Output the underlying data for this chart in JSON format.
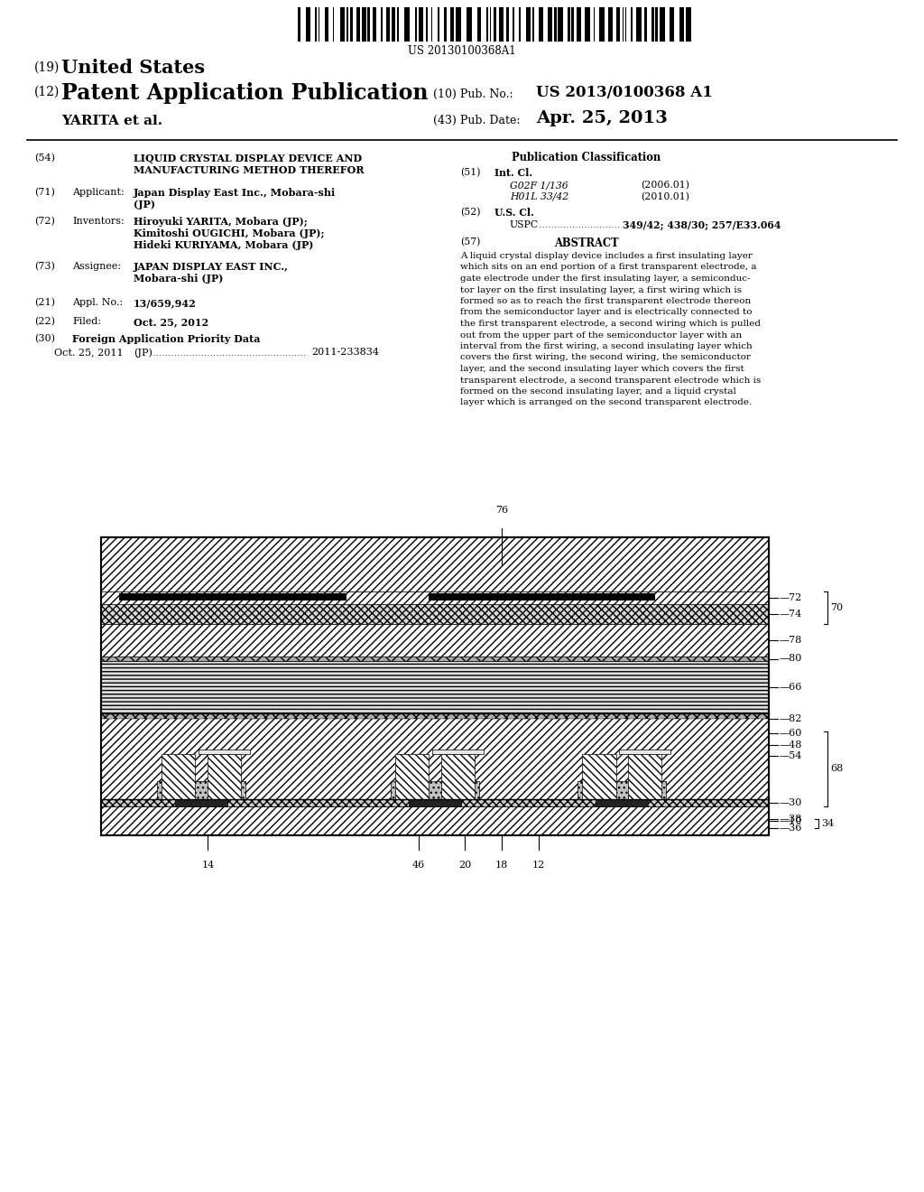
{
  "background_color": "#ffffff",
  "barcode_text": "US 20130100368A1",
  "title_19": "(19)",
  "title_19b": "United States",
  "title_12": "(12)",
  "title_12b": "Patent Application Publication",
  "pub_no_label": "(10) Pub. No.:",
  "pub_no_value": "US 2013/0100368 A1",
  "inventor_line_num": "YARITA et al.",
  "pub_date_label": "(43) Pub. Date:",
  "pub_date_value": "Apr. 25, 2013",
  "field54_label": "(54)",
  "field54_text1": "LIQUID CRYSTAL DISPLAY DEVICE AND",
  "field54_text2": "MANUFACTURING METHOD THEREFOR",
  "field71_label": "(71)",
  "field71_title": "Applicant:",
  "field71_text1": "Japan Display East Inc., Mobara-shi",
  "field71_text2": "(JP)",
  "field72_label": "(72)",
  "field72_title": "Inventors:",
  "field72_text1": "Hiroyuki YARITA, Mobara (JP);",
  "field72_text2": "Kimitoshi OUGICHI, Mobara (JP);",
  "field72_text3": "Hideki KURIYAMA, Mobara (JP)",
  "field73_label": "(73)",
  "field73_title": "Assignee:",
  "field73_text1": "JAPAN DISPLAY EAST INC.,",
  "field73_text2": "Mobara-shi (JP)",
  "field21_label": "(21)",
  "field21_title": "Appl. No.:",
  "field21_text": "13/659,942",
  "field22_label": "(22)",
  "field22_title": "Filed:",
  "field22_text": "Oct. 25, 2012",
  "field30_label": "(30)",
  "field30_title": "Foreign Application Priority Data",
  "field30_date": "Oct. 25, 2011",
  "field30_country": "(JP)",
  "field30_num": "2011-233834",
  "pub_class_title": "Publication Classification",
  "field51_label": "(51)",
  "field51_title": "Int. Cl.",
  "field51_class1": "G02F 1/136",
  "field51_year1": "(2006.01)",
  "field51_class2": "H01L 33/42",
  "field51_year2": "(2010.01)",
  "field52_label": "(52)",
  "field52_title": "U.S. Cl.",
  "field52_uspc": "USPC",
  "field52_dots": ".........................",
  "field52_value": "349/42; 438/30; 257/E33.064",
  "field57_label": "(57)",
  "field57_title": "ABSTRACT",
  "abstract_lines": [
    "A liquid crystal display device includes a first insulating layer",
    "which sits on an end portion of a first transparent electrode, a",
    "gate electrode under the first insulating layer, a semiconduc-",
    "tor layer on the first insulating layer, a first wiring which is",
    "formed so as to reach the first transparent electrode thereon",
    "from the semiconductor layer and is electrically connected to",
    "the first transparent electrode, a second wiring which is pulled",
    "out from the upper part of the semiconductor layer with an",
    "interval from the first wiring, a second insulating layer which",
    "covers the first wiring, the second wiring, the semiconductor",
    "layer, and the second insulating layer which covers the first",
    "transparent electrode, a second transparent electrode which is",
    "formed on the second insulating layer, and a liquid crystal",
    "layer which is arranged on the second transparent electrode."
  ]
}
